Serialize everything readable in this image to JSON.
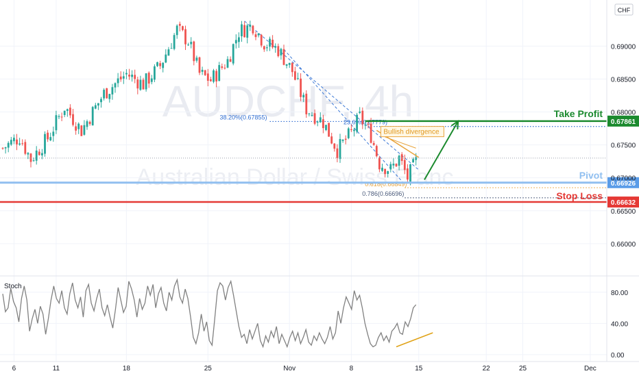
{
  "chart_data": {
    "type": "candlestick",
    "symbol": "AUDCHF, 4h",
    "watermark_title": "AUDCHF, 4h",
    "watermark_subtitle": "Australian Dollar / Swiss Franc",
    "currency_badge": "CHF",
    "price_axis": {
      "ticks": [
        "0.69000",
        "0.68500",
        "0.68000",
        "0.67500",
        "0.67000",
        "0.66500",
        "0.66000"
      ],
      "tick_values": [
        0.69,
        0.685,
        0.68,
        0.675,
        0.67,
        0.665,
        0.66
      ],
      "range": [
        0.6552,
        0.697
      ],
      "top_partial_label": "0"
    },
    "time_axis": {
      "ticks": [
        "6",
        "11",
        "18",
        "25",
        "Nov",
        "8",
        "15",
        "22",
        "25",
        "Dec"
      ],
      "bar_index": [
        4,
        19,
        44,
        73,
        102,
        124,
        148,
        172,
        185,
        209
      ]
    },
    "candles": {
      "count": 148,
      "bull_color": "#26a69a",
      "bear_color": "#ef5350",
      "anchors": [
        [
          0,
          0.6745
        ],
        [
          6,
          0.6762
        ],
        [
          10,
          0.6728
        ],
        [
          16,
          0.676
        ],
        [
          22,
          0.6808
        ],
        [
          28,
          0.6772
        ],
        [
          36,
          0.6828
        ],
        [
          44,
          0.6858
        ],
        [
          50,
          0.6842
        ],
        [
          56,
          0.687
        ],
        [
          62,
          0.6925
        ],
        [
          66,
          0.6908
        ],
        [
          70,
          0.6858
        ],
        [
          74,
          0.6848
        ],
        [
          80,
          0.6878
        ],
        [
          84,
          0.6922
        ],
        [
          89,
          0.6932
        ],
        [
          93,
          0.6905
        ],
        [
          98,
          0.6895
        ],
        [
          103,
          0.6862
        ],
        [
          108,
          0.6805
        ],
        [
          114,
          0.6785
        ],
        [
          119,
          0.6742
        ],
        [
          124,
          0.6768
        ],
        [
          127,
          0.6792
        ],
        [
          131,
          0.6765
        ],
        [
          134,
          0.6722
        ],
        [
          138,
          0.6712
        ],
        [
          141,
          0.673
        ],
        [
          144,
          0.67
        ],
        [
          147,
          0.6724
        ]
      ]
    },
    "levels": [
      {
        "name": "Take Profit",
        "value": 0.67861,
        "label": "0.67861",
        "color": "#1b8a2e"
      },
      {
        "name": "Pivot",
        "value": 0.66926,
        "label": "0.66926",
        "color": "#90bff0"
      },
      {
        "name": "Stop Loss",
        "value": 0.66632,
        "label": "0.66632",
        "color": "#e53935"
      }
    ],
    "fib_levels": [
      {
        "label": "38.20%(0.67855)",
        "value": 0.67855,
        "color": "#2f6dd1",
        "from_bar": 95
      },
      {
        "label": "23.6%(0.67779)",
        "value": 0.67779,
        "color": "#2f6dd1",
        "from_bar": 130
      },
      {
        "label": "0.618(0.66849)",
        "value": 0.66849,
        "color": "#e8a33a",
        "from_bar": 143
      },
      {
        "label": "0.786(0.66696)",
        "value": 0.66696,
        "color": "#4a5a7a",
        "from_bar": 143
      }
    ],
    "current_price_line": 0.673,
    "annotations": {
      "bullish_divergence": "Bullish divergence",
      "projection_arrow": {
        "from": [
          150,
          0.6697
        ],
        "to": [
          162,
          0.6786
        ],
        "color": "#1b8a2e"
      }
    },
    "stochastic": {
      "name": "Stoch",
      "ticks": [
        "80.00",
        "40.00",
        "0.00"
      ],
      "tick_values": [
        80,
        40,
        0
      ],
      "range": [
        -8,
        100
      ],
      "line_color": "#808080",
      "divergence_line": {
        "from": [
          140,
          10
        ],
        "to": [
          153,
          28
        ],
        "color": "#e0a216"
      },
      "values": [
        78,
        55,
        60,
        85,
        68,
        60,
        42,
        72,
        88,
        70,
        30,
        46,
        58,
        40,
        62,
        52,
        26,
        46,
        70,
        88,
        72,
        66,
        82,
        60,
        52,
        78,
        92,
        70,
        60,
        74,
        48,
        82,
        90,
        66,
        56,
        72,
        84,
        60,
        50,
        64,
        48,
        34,
        58,
        86,
        70,
        54,
        62,
        94,
        84,
        70,
        48,
        72,
        58,
        66,
        88,
        76,
        90,
        60,
        78,
        86,
        66,
        56,
        80,
        70,
        88,
        96,
        74,
        66,
        84,
        72,
        48,
        22,
        14,
        28,
        52,
        30,
        42,
        18,
        12,
        46,
        82,
        92,
        88,
        70,
        86,
        94,
        76,
        56,
        36,
        22,
        26,
        14,
        32,
        20,
        30,
        40,
        18,
        10,
        24,
        16,
        30,
        22,
        36,
        14,
        26,
        18,
        10,
        22,
        30,
        18,
        28,
        14,
        22,
        32,
        16,
        12,
        24,
        18,
        28,
        20,
        14,
        22,
        36,
        20,
        28,
        56,
        40,
        60,
        74,
        66,
        58,
        82,
        70,
        76,
        60,
        40,
        26,
        14,
        10,
        12,
        22,
        28,
        18,
        24,
        16,
        30,
        34,
        40,
        28,
        26,
        42,
        36,
        46,
        60,
        64
      ]
    }
  }
}
